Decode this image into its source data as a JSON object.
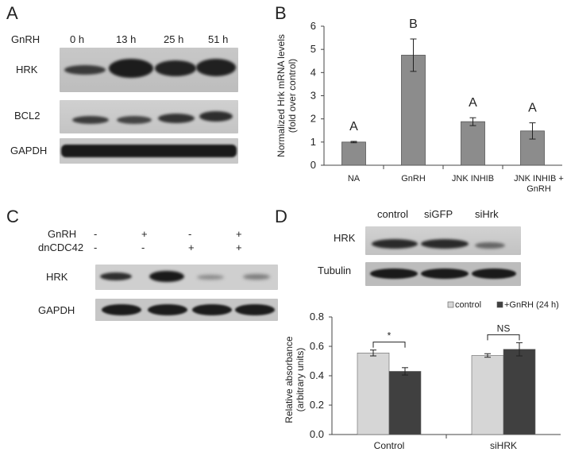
{
  "panels": {
    "A": {
      "label": "A",
      "row_label": "GnRH",
      "timepoints": [
        "0 h",
        "13 h",
        "25 h",
        "51 h"
      ],
      "blots": [
        "HRK",
        "BCL2",
        "GAPDH"
      ]
    },
    "B": {
      "label": "B"
    },
    "C": {
      "label": "C",
      "rows": [
        {
          "name": "GnRH",
          "signs": [
            "-",
            "+",
            "-",
            "+"
          ]
        },
        {
          "name": "dnCDC42",
          "signs": [
            "-",
            "-",
            "+",
            "+"
          ]
        }
      ],
      "blots": [
        "HRK",
        "GAPDH"
      ]
    },
    "D": {
      "label": "D",
      "lanes": [
        "control",
        "siGFP",
        "siHrk"
      ],
      "blots": [
        "HRK",
        "Tubulin"
      ]
    }
  },
  "chart_data": [
    {
      "panel": "B",
      "type": "bar",
      "ylabel_lines": [
        "Normalized Hrk mRNA levels",
        "(fold over control)"
      ],
      "categories": [
        "NA",
        "GnRH",
        "JNK INHIB",
        "JNK INHIB +\nGnRH"
      ],
      "category_lines": [
        [
          "NA"
        ],
        [
          "GnRH"
        ],
        [
          "JNK INHIB"
        ],
        [
          "JNK INHIB +",
          "GnRH"
        ]
      ],
      "values": [
        1.0,
        4.75,
        1.88,
        1.48
      ],
      "errors": [
        0.03,
        0.7,
        0.17,
        0.35
      ],
      "letters": [
        "A",
        "B",
        "A",
        "A"
      ],
      "ylim": [
        0,
        6
      ],
      "yticks": [
        "0",
        "1",
        "2",
        "3",
        "4",
        "5",
        "6"
      ],
      "bar_color": "#8c8c8c"
    },
    {
      "panel": "D",
      "type": "bar",
      "ylabel_lines": [
        "Relative absorbance",
        "(arbitrary units)"
      ],
      "categories": [
        "Control",
        "siHRK"
      ],
      "series": [
        {
          "name": "control",
          "values": [
            0.555,
            0.538
          ],
          "errors": [
            0.02,
            0.012
          ],
          "color": "#d6d6d6"
        },
        {
          "name": "+GnRH (24 h)",
          "values": [
            0.43,
            0.58
          ],
          "errors": [
            0.025,
            0.045
          ],
          "color": "#404040"
        }
      ],
      "significance": [
        "*",
        "NS"
      ],
      "ylim": [
        0,
        0.8
      ],
      "yticks": [
        "0.0",
        "0.2",
        "0.4",
        "0.6",
        "0.8"
      ]
    }
  ]
}
